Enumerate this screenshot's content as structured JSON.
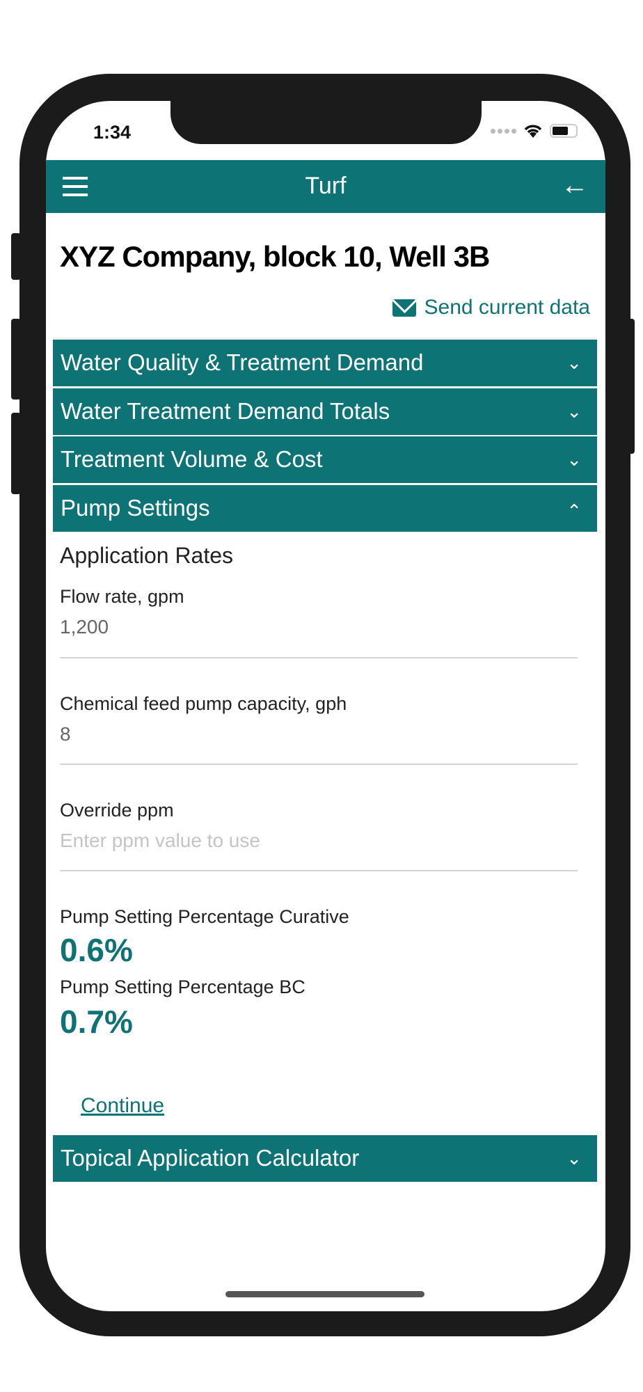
{
  "status_bar": {
    "time": "1:34"
  },
  "header": {
    "title": "Turf",
    "menu_icon": "hamburger-icon",
    "back_icon": "arrow-left-icon"
  },
  "page_title": "XYZ Company, block 10, Well 3B",
  "send_data": {
    "label": "Send current data",
    "icon": "envelope-icon"
  },
  "sections": [
    {
      "label": "Water Quality & Treatment Demand",
      "expanded": false
    },
    {
      "label": "Water Treatment Demand Totals",
      "expanded": false
    },
    {
      "label": "Treatment Volume & Cost",
      "expanded": false
    },
    {
      "label": "Pump Settings",
      "expanded": true
    },
    {
      "label": "Topical Application Calculator",
      "expanded": false
    }
  ],
  "pump_settings": {
    "subheading": "Application Rates",
    "flow_rate": {
      "label": "Flow rate, gpm",
      "value": "1,200"
    },
    "pump_capacity": {
      "label": "Chemical feed pump capacity, gph",
      "value": "8"
    },
    "override_ppm": {
      "label": "Override ppm",
      "value": "",
      "placeholder": "Enter ppm value to use"
    },
    "curative": {
      "label": "Pump Setting Percentage Curative",
      "value": "0.6%"
    },
    "bc": {
      "label": "Pump Setting Percentage BC",
      "value": "0.7%"
    },
    "continue_label": "Continue"
  },
  "colors": {
    "brand": "#0e7375"
  }
}
